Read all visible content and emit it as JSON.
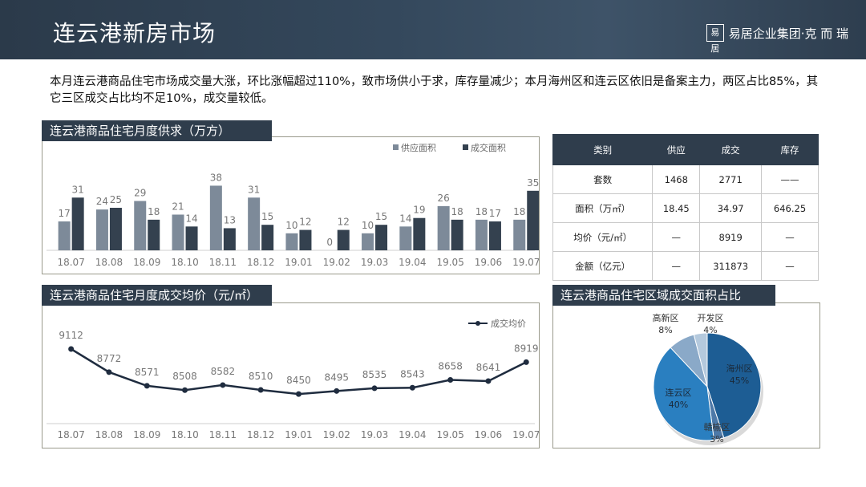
{
  "header": {
    "title": "连云港新房市场",
    "logo_text": "易居企业集团·克 而 瑞",
    "logo_mark": "易居"
  },
  "summary": "本月连云港商品住宅市场成交量大涨，环比涨幅超过110%，致市场供小于求，库存量减少；本月海州区和连云区依旧是备案主力，两区占比85%，其它三区成交占比均不足10%，成交量较低。",
  "panels": {
    "supply_title": "连云港商品住宅月度供求（万方）",
    "price_title": "连云港商品住宅月度成交均价（元/㎡）",
    "region_title": "连云港商品住宅区域成交面积占比"
  },
  "colors": {
    "supply": "#7d8a99",
    "deal": "#34414f",
    "price_line": "#1f2c3f",
    "pie_haizhou": "#1d5d94",
    "pie_lianyun": "#2a7fc0",
    "pie_gaoxin": "#8aa9c8",
    "pie_kaifa": "#b4c9dd",
    "pie_ganyu": "#4d79a8"
  },
  "table": {
    "headers": [
      "类别",
      "供应",
      "成交",
      "库存"
    ],
    "rows": [
      [
        "套数",
        "1468",
        "2771",
        "——"
      ],
      [
        "面积（万㎡）",
        "18.45",
        "34.97",
        "646.25"
      ],
      [
        "均价（元/㎡）",
        "—",
        "8919",
        "—"
      ],
      [
        "金额（亿元）",
        "—",
        "311873",
        "—"
      ]
    ]
  },
  "chart_data": [
    {
      "type": "bar",
      "title": "连云港商品住宅月度供求（万方）",
      "categories": [
        "18.07",
        "18.08",
        "18.09",
        "18.10",
        "18.11",
        "18.12",
        "19.01",
        "19.02",
        "19.03",
        "19.04",
        "19.05",
        "19.06",
        "19.07"
      ],
      "series": [
        {
          "name": "供应面积",
          "values": [
            17,
            24,
            29,
            21,
            38,
            31,
            10,
            0,
            10,
            14,
            26,
            18,
            18
          ]
        },
        {
          "name": "成交面积",
          "values": [
            31,
            25,
            18,
            14,
            13,
            15,
            12,
            12,
            15,
            19,
            18,
            17,
            35
          ]
        }
      ],
      "legend": "top-right"
    },
    {
      "type": "line",
      "title": "连云港商品住宅月度成交均价（元/㎡）",
      "categories": [
        "18.07",
        "18.08",
        "18.09",
        "18.10",
        "18.11",
        "18.12",
        "19.01",
        "19.02",
        "19.03",
        "19.04",
        "19.05",
        "19.06",
        "19.07"
      ],
      "series": [
        {
          "name": "成交均价",
          "values": [
            9112,
            8772,
            8571,
            8508,
            8582,
            8510,
            8450,
            8495,
            8535,
            8543,
            8658,
            8641,
            8919
          ]
        }
      ],
      "legend": "top-right"
    },
    {
      "type": "pie",
      "title": "连云港商品住宅区域成交面积占比",
      "labels": [
        "海州区",
        "赣榆区",
        "连云区",
        "高新区",
        "开发区"
      ],
      "values": [
        45,
        3,
        40,
        8,
        4
      ]
    }
  ]
}
